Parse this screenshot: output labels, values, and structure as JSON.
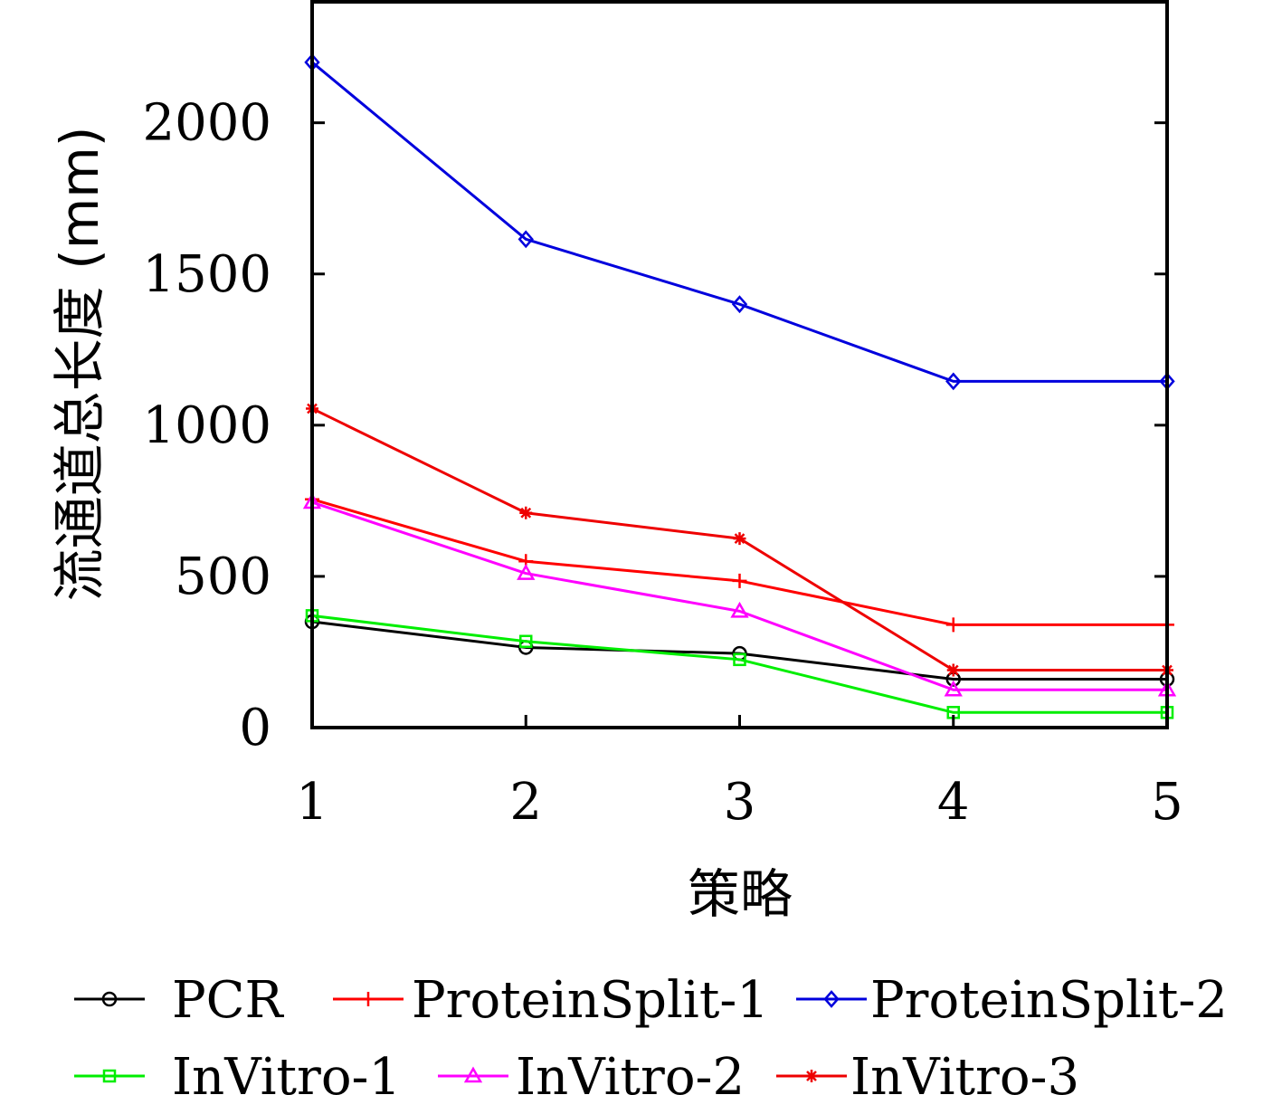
{
  "chart_data": {
    "type": "line",
    "xlabel": "策略",
    "ylabel": "流通道总长度 (mm)",
    "x": [
      1,
      2,
      3,
      4,
      5
    ],
    "xlim": [
      1,
      5
    ],
    "ylim": [
      0,
      2400
    ],
    "xticks": [
      1,
      2,
      3,
      4,
      5
    ],
    "yticks": [
      0,
      500,
      1000,
      1500,
      2000
    ],
    "grid": false,
    "legend_position": "bottom",
    "series": [
      {
        "name": "PCR",
        "color": "#000000",
        "marker": "circle",
        "values": [
          350,
          265,
          245,
          160,
          160
        ]
      },
      {
        "name": "ProteinSplit-1",
        "color": "#ff0000",
        "marker": "plus",
        "values": [
          755,
          550,
          485,
          340,
          340
        ]
      },
      {
        "name": "ProteinSplit-2",
        "color": "#0000dd",
        "marker": "diamond",
        "values": [
          2200,
          1615,
          1400,
          1145,
          1145
        ]
      },
      {
        "name": "InVitro-1",
        "color": "#00ee00",
        "marker": "square",
        "values": [
          370,
          285,
          225,
          50,
          50
        ]
      },
      {
        "name": "InVitro-2",
        "color": "#ff00ff",
        "marker": "triangle",
        "values": [
          745,
          510,
          385,
          125,
          125
        ]
      },
      {
        "name": "InVitro-3",
        "color": "#ee0000",
        "marker": "star",
        "values": [
          1055,
          710,
          625,
          190,
          190
        ]
      }
    ]
  }
}
